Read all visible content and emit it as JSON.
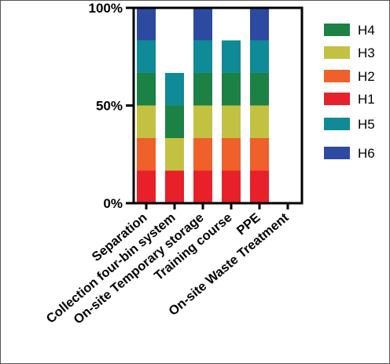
{
  "chart_data": {
    "type": "bar",
    "stacked": true,
    "categories": [
      "Separation",
      "Collection four-bin system",
      "On-site Temporary storage",
      "Training course",
      "PPE",
      "On-site Waste Treatment"
    ],
    "series": [
      {
        "name": "H1",
        "color": "#e8202a",
        "values": [
          16.67,
          16.67,
          16.67,
          16.67,
          16.67,
          0
        ]
      },
      {
        "name": "H2",
        "color": "#f0602a",
        "values": [
          16.67,
          0,
          16.67,
          16.67,
          16.67,
          0
        ]
      },
      {
        "name": "H3",
        "color": "#c3c142",
        "values": [
          16.67,
          16.67,
          16.67,
          16.67,
          16.67,
          0
        ]
      },
      {
        "name": "H4",
        "color": "#1c8145",
        "values": [
          16.67,
          16.67,
          16.67,
          16.67,
          16.67,
          0
        ]
      },
      {
        "name": "H5",
        "color": "#0f8a97",
        "values": [
          16.67,
          16.67,
          16.67,
          16.67,
          16.67,
          0
        ]
      },
      {
        "name": "H6",
        "color": "#2c4aa0",
        "values": [
          16.67,
          0,
          16.67,
          0,
          16.67,
          0
        ]
      }
    ],
    "legend_order": [
      "H4",
      "H3",
      "H2",
      "H1",
      "H5",
      "H6"
    ],
    "ylim": [
      0,
      100
    ],
    "yticks": [
      "0%",
      "50%",
      "100%"
    ],
    "ytick_values": [
      0,
      50,
      100
    ],
    "legend_position": "right",
    "grid": false
  }
}
